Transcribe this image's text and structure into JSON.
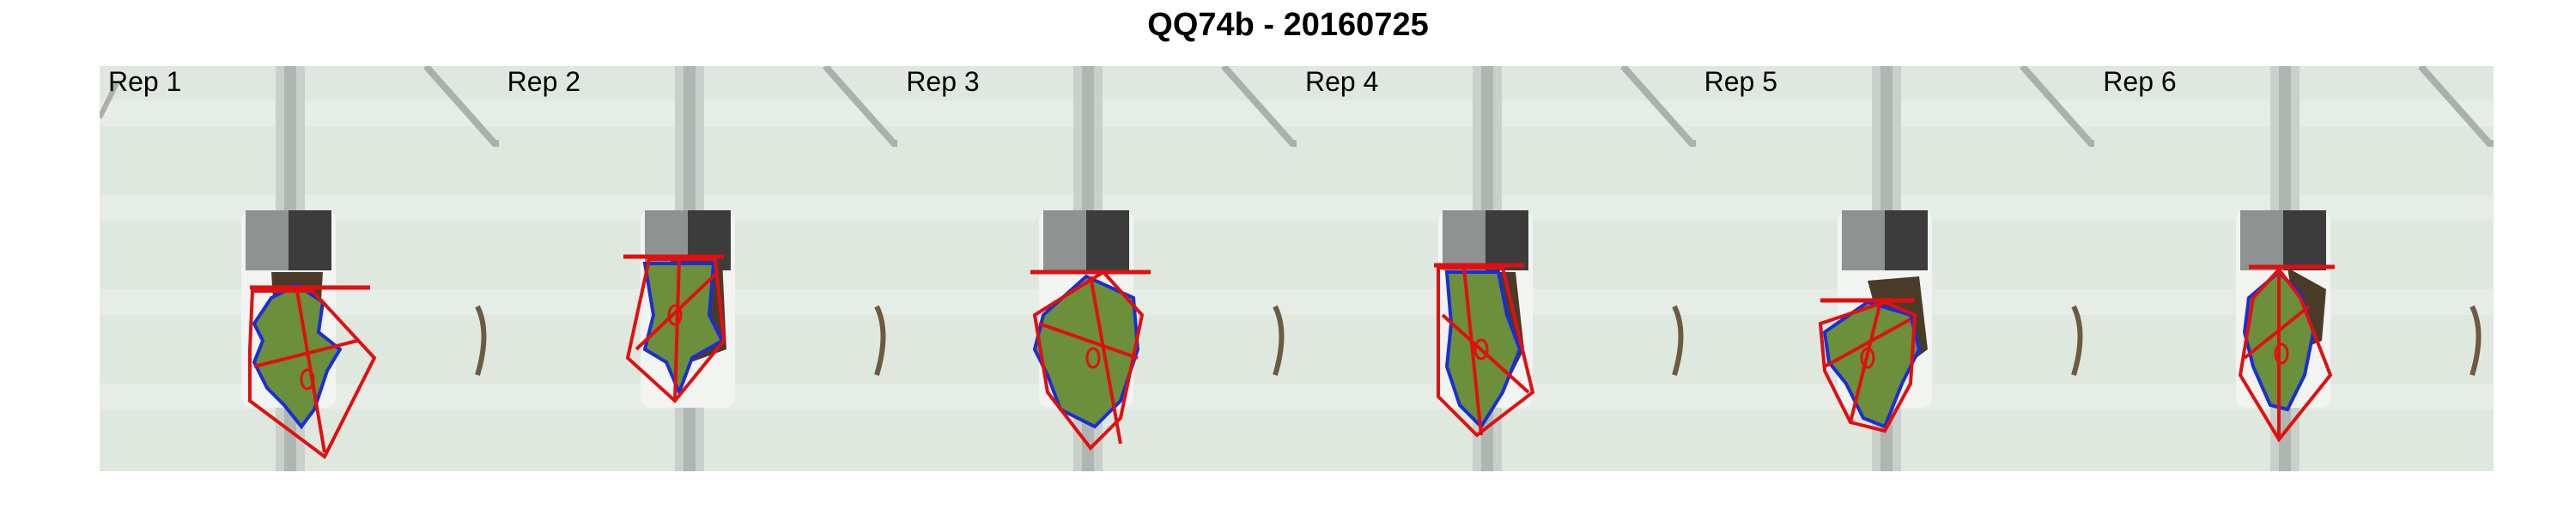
{
  "title": "QQ74b - 20160725",
  "panels": [
    {
      "label": "Rep 1"
    },
    {
      "label": "Rep 2"
    },
    {
      "label": "Rep 3"
    },
    {
      "label": "Rep 4"
    },
    {
      "label": "Rep 5"
    },
    {
      "label": "Rep 6"
    }
  ],
  "colors": {
    "background": "#dde6dd",
    "leaf": "#6b8f3a",
    "leaf_outline": "#1a2ed6",
    "hull": "#e01010",
    "pot_white": "#f2f4f2",
    "soil": "#4a3a28"
  }
}
